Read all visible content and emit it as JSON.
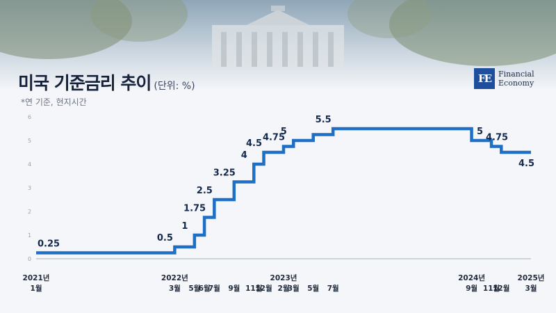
{
  "header": {
    "title": "미국 기준금리 추이",
    "unit": "(단위: %)",
    "note": "*연 기준, 현지시간"
  },
  "logo": {
    "mark": "FE",
    "line1": "Financial",
    "line2": "Economy",
    "color": "#1f4f9c"
  },
  "chart_data": {
    "type": "line",
    "step": true,
    "title": "미국 기준금리 추이",
    "unit": "%",
    "ylim": [
      0,
      6
    ],
    "yticks": [
      0,
      1,
      2,
      3,
      4,
      5,
      6
    ],
    "grid": false,
    "legend": "none",
    "line_color": "#1f6fc5",
    "points": [
      {
        "date": "2021-01",
        "value": 0.25,
        "label": "0.25"
      },
      {
        "date": "2022-03",
        "value": 0.5,
        "label": "0.5"
      },
      {
        "date": "2022-05",
        "value": 1,
        "label": "1"
      },
      {
        "date": "2022-06",
        "value": 1.75,
        "label": "1.75"
      },
      {
        "date": "2022-07",
        "value": 2.5,
        "label": "2.5"
      },
      {
        "date": "2022-09",
        "value": 3.25,
        "label": "3.25"
      },
      {
        "date": "2022-11",
        "value": 4,
        "label": "4"
      },
      {
        "date": "2022-12",
        "value": 4.5,
        "label": "4.5"
      },
      {
        "date": "2023-02",
        "value": 4.75,
        "label": "4.75"
      },
      {
        "date": "2023-03",
        "value": 5,
        "label": "5"
      },
      {
        "date": "2023-05",
        "value": 5.25,
        "label": ""
      },
      {
        "date": "2023-07",
        "value": 5.5,
        "label": "5.5"
      },
      {
        "date": "2024-09",
        "value": 5,
        "label": "5"
      },
      {
        "date": "2024-11",
        "value": 4.75,
        "label": "4.75"
      },
      {
        "date": "2024-12",
        "value": 4.5,
        "label": "4.5"
      },
      {
        "date": "2025-03",
        "value": 4.5,
        "label": ""
      }
    ],
    "x_ticks": [
      {
        "date": "2021-01",
        "year": "2021년",
        "month": "1월"
      },
      {
        "date": "2022-03",
        "year": "2022년",
        "month": "3월"
      },
      {
        "date": "2022-05",
        "year": "",
        "month": "5월"
      },
      {
        "date": "2022-06",
        "year": "",
        "month": "6월"
      },
      {
        "date": "2022-07",
        "year": "",
        "month": "7월"
      },
      {
        "date": "2022-09",
        "year": "",
        "month": "9월"
      },
      {
        "date": "2022-11",
        "year": "",
        "month": "11월"
      },
      {
        "date": "2022-12",
        "year": "",
        "month": "12월"
      },
      {
        "date": "2023-02",
        "year": "2023년",
        "month": "2월"
      },
      {
        "date": "2023-03",
        "year": "",
        "month": "3월"
      },
      {
        "date": "2023-05",
        "year": "",
        "month": "5월"
      },
      {
        "date": "2023-07",
        "year": "",
        "month": "7월"
      },
      {
        "date": "2024-09",
        "year": "2024년",
        "month": "9월"
      },
      {
        "date": "2024-11",
        "year": "",
        "month": "11월"
      },
      {
        "date": "2024-12",
        "year": "",
        "month": "12월"
      },
      {
        "date": "2025-03",
        "year": "2025년",
        "month": "3월"
      }
    ]
  }
}
